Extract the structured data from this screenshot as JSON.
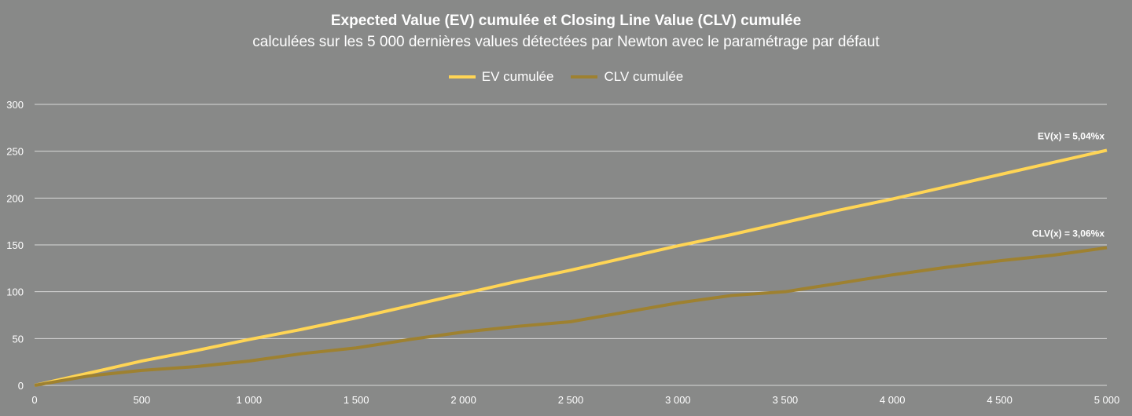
{
  "chart_data": {
    "type": "line",
    "title": "Expected Value (EV) cumulée et Closing Line Value (CLV) cumulée",
    "subtitle": "calculées sur les 5 000 dernières values détectées par Newton avec le paramétrage par défaut",
    "xlabel": "",
    "ylabel": "",
    "xlim": [
      0,
      5000
    ],
    "ylim": [
      0,
      300
    ],
    "x_ticks": [
      "0",
      "500",
      "1 000",
      "1 500",
      "2 000",
      "2 500",
      "3 000",
      "3 500",
      "4 000",
      "4 500",
      "5 000"
    ],
    "y_ticks": [
      "0",
      "50",
      "100",
      "150",
      "200",
      "250",
      "300"
    ],
    "grid": true,
    "legend_placement": "top",
    "x": [
      0,
      250,
      500,
      750,
      1000,
      1250,
      1500,
      1750,
      2000,
      2250,
      2500,
      2750,
      3000,
      3250,
      3500,
      3750,
      4000,
      4250,
      4500,
      4750,
      5000
    ],
    "series": [
      {
        "name": "EV cumulée",
        "color": "#FFD555",
        "values": [
          0,
          13,
          26,
          37,
          49,
          60,
          72,
          85,
          98,
          111,
          123,
          136,
          149,
          161,
          174,
          187,
          199,
          212,
          225,
          238,
          251
        ]
      },
      {
        "name": "CLV cumulée",
        "color": "#9E8130",
        "values": [
          0,
          10,
          16,
          20,
          26,
          34,
          40,
          49,
          57,
          63,
          68,
          78,
          88,
          96,
          100,
          109,
          118,
          126,
          133,
          139,
          147
        ]
      }
    ],
    "annotations": [
      "EV(x) = 5,04%x",
      "CLV(x) = 3,06%x"
    ]
  }
}
